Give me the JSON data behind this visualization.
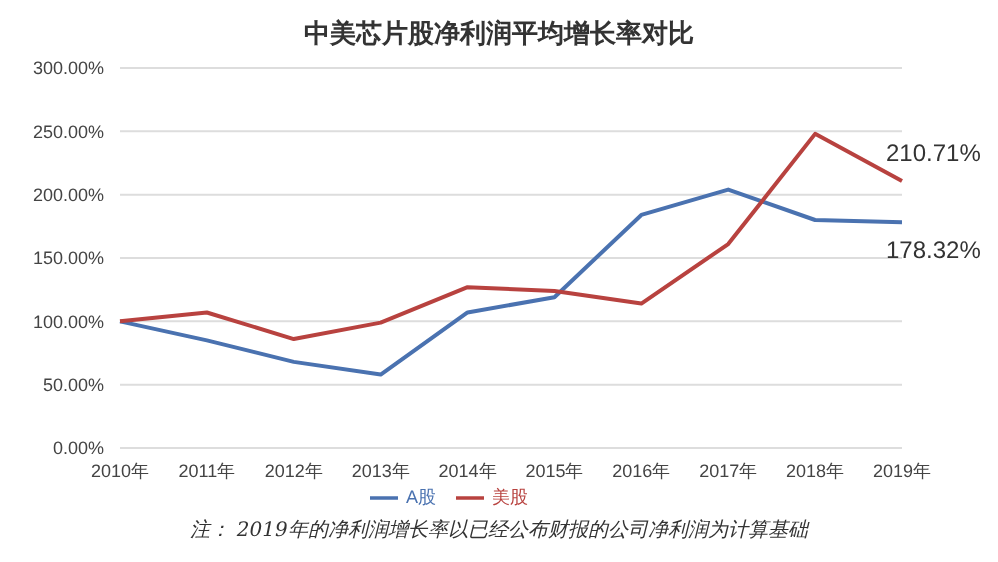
{
  "chart_data": {
    "type": "line",
    "title": "中美芯片股净利润平均增长率对比",
    "categories": [
      "2010年",
      "2011年",
      "2012年",
      "2013年",
      "2014年",
      "2015年",
      "2016年",
      "2017年",
      "2018年",
      "2019年"
    ],
    "series": [
      {
        "name": "A股",
        "color": "#4a72b0",
        "values": [
          100,
          85,
          68,
          58,
          107,
          119,
          184,
          204,
          180,
          178.32
        ],
        "value_labels": [
          null,
          null,
          null,
          null,
          null,
          null,
          null,
          null,
          null,
          "178.32%"
        ]
      },
      {
        "name": "美股",
        "color": "#b8423f",
        "values": [
          100,
          107,
          86,
          99,
          127,
          124,
          114,
          161,
          248,
          210.71
        ],
        "value_labels": [
          null,
          null,
          null,
          null,
          null,
          null,
          null,
          null,
          null,
          "210.71%"
        ]
      }
    ],
    "ylim": [
      0,
      300
    ],
    "yticks": [
      {
        "value": 0,
        "label": "0.00%"
      },
      {
        "value": 50,
        "label": "50.00%"
      },
      {
        "value": 100,
        "label": "100.00%"
      },
      {
        "value": 150,
        "label": "150.00%"
      },
      {
        "value": 200,
        "label": "200.00%"
      },
      {
        "value": 250,
        "label": "250.00%"
      },
      {
        "value": 300,
        "label": "300.00%"
      }
    ],
    "grid": "y",
    "legend": "bottom",
    "marker": "none",
    "line_style": "solid",
    "annotations": [
      "注： 2019年的净利润增长率以已经公布财报的公司净利润为计算基础"
    ]
  }
}
